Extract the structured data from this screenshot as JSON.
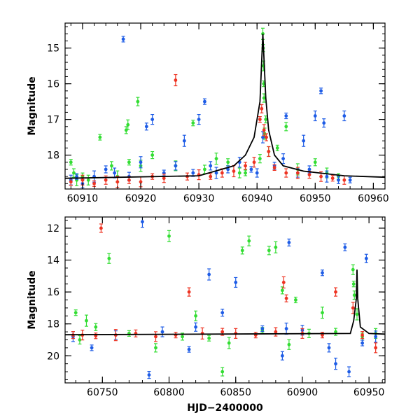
{
  "chart_data": [
    {
      "type": "scatter",
      "panel": "top",
      "title": "",
      "xlabel": "",
      "ylabel": "Magnitude",
      "xlim": [
        60907,
        60962
      ],
      "ylim": [
        18.95,
        14.3
      ],
      "y_inverted": true,
      "grid": false,
      "x_ticks": [
        60910,
        60920,
        60930,
        60940,
        60950,
        60960
      ],
      "y_ticks": [
        15,
        16,
        17,
        18
      ],
      "series": [
        {
          "name": "green",
          "color": "#33dd33",
          "points": [
            [
              60908,
              18.2
            ],
            [
              60908.5,
              18.5
            ],
            [
              60909,
              18.7
            ],
            [
              60910,
              18.6
            ],
            [
              60911,
              18.7
            ],
            [
              60913,
              17.5
            ],
            [
              60915,
              18.3
            ],
            [
              60916,
              18.6
            ],
            [
              60917.5,
              17.3
            ],
            [
              60917.8,
              17.15
            ],
            [
              60918,
              18.2
            ],
            [
              60919.5,
              16.5
            ],
            [
              60920,
              18.3
            ],
            [
              60922,
              18.0
            ],
            [
              60926,
              18.3
            ],
            [
              60929,
              17.1
            ],
            [
              60931,
              18.4
            ],
            [
              60933,
              18.1
            ],
            [
              60935,
              18.2
            ],
            [
              60937,
              18.5
            ],
            [
              60938,
              18.5
            ],
            [
              60940.5,
              18.1
            ],
            [
              60941,
              14.6
            ],
            [
              60941.05,
              15.0
            ],
            [
              60941.1,
              15.5
            ],
            [
              60941.15,
              16.0
            ],
            [
              60941.2,
              16.4
            ],
            [
              60941.3,
              17.4
            ],
            [
              60941.5,
              17.0
            ],
            [
              60942,
              17.9
            ],
            [
              60943.5,
              17.8
            ],
            [
              60945,
              17.2
            ],
            [
              60947,
              18.4
            ],
            [
              60950,
              18.2
            ],
            [
              60952,
              18.5
            ],
            [
              60954,
              18.6
            ]
          ]
        },
        {
          "name": "blue",
          "color": "#1e5ce6",
          "points": [
            [
              60908,
              18.7
            ],
            [
              60909,
              18.6
            ],
            [
              60910,
              18.8
            ],
            [
              60912,
              18.6
            ],
            [
              60914,
              18.4
            ],
            [
              60915.5,
              18.5
            ],
            [
              60917,
              14.75
            ],
            [
              60918,
              18.6
            ],
            [
              60920,
              18.2
            ],
            [
              60921,
              17.2
            ],
            [
              60922,
              17.0
            ],
            [
              60924,
              18.5
            ],
            [
              60926,
              18.3
            ],
            [
              60927.5,
              17.6
            ],
            [
              60929,
              18.5
            ],
            [
              60930,
              17.0
            ],
            [
              60931,
              16.5
            ],
            [
              60932,
              18.3
            ],
            [
              60933,
              18.5
            ],
            [
              60935,
              18.4
            ],
            [
              60937,
              18.2
            ],
            [
              60939,
              18.4
            ],
            [
              60940,
              18.5
            ],
            [
              60941,
              17.5
            ],
            [
              60943,
              18.3
            ],
            [
              60944.5,
              18.1
            ],
            [
              60945,
              16.9
            ],
            [
              60947,
              18.5
            ],
            [
              60948,
              17.6
            ],
            [
              60949,
              18.4
            ],
            [
              60950,
              16.9
            ],
            [
              60951,
              16.2
            ],
            [
              60951.5,
              17.1
            ],
            [
              60952,
              18.6
            ],
            [
              60954,
              18.7
            ],
            [
              60955,
              16.9
            ],
            [
              60956,
              18.7
            ]
          ]
        },
        {
          "name": "red",
          "color": "#ee3322",
          "points": [
            [
              60908,
              18.75
            ],
            [
              60910,
              18.7
            ],
            [
              60912,
              18.8
            ],
            [
              60914,
              18.7
            ],
            [
              60916,
              18.75
            ],
            [
              60918,
              18.7
            ],
            [
              60920,
              18.75
            ],
            [
              60922,
              18.6
            ],
            [
              60924,
              18.65
            ],
            [
              60926,
              15.9
            ],
            [
              60928,
              18.6
            ],
            [
              60930,
              18.55
            ],
            [
              60932,
              18.6
            ],
            [
              60934,
              18.5
            ],
            [
              60936,
              18.45
            ],
            [
              60938,
              18.3
            ],
            [
              60939.5,
              18.2
            ],
            [
              60940.5,
              17.0
            ],
            [
              60940.8,
              16.7
            ],
            [
              60941.2,
              17.3
            ],
            [
              60941.6,
              17.5
            ],
            [
              60942,
              17.9
            ],
            [
              60943,
              18.35
            ],
            [
              60945,
              18.5
            ],
            [
              60947,
              18.5
            ],
            [
              60949,
              18.55
            ],
            [
              60951,
              18.6
            ],
            [
              60953,
              18.65
            ],
            [
              60955,
              18.7
            ]
          ]
        }
      ],
      "model_curve": [
        [
          60907,
          18.65
        ],
        [
          60930,
          18.58
        ],
        [
          60936,
          18.3
        ],
        [
          60938,
          18.0
        ],
        [
          60939.5,
          17.5
        ],
        [
          60940.5,
          16.5
        ],
        [
          60941,
          14.6
        ],
        [
          60941.5,
          16.4
        ],
        [
          60942,
          17.3
        ],
        [
          60943,
          18.0
        ],
        [
          60944.5,
          18.3
        ],
        [
          60948,
          18.45
        ],
        [
          60955,
          18.58
        ],
        [
          60962,
          18.62
        ]
      ]
    },
    {
      "type": "scatter",
      "panel": "bottom",
      "title": "",
      "xlabel": "HJD−2400000",
      "ylabel": "Magnitude",
      "xlim": [
        60722,
        60962
      ],
      "ylim": [
        21.7,
        11.3
      ],
      "y_inverted": true,
      "grid": false,
      "x_ticks": [
        60750,
        60800,
        60850,
        60900,
        60950
      ],
      "y_ticks": [
        12,
        14,
        16,
        18,
        20
      ],
      "series": [
        {
          "name": "green",
          "color": "#33dd33",
          "points": [
            [
              60730,
              17.3
            ],
            [
              60733,
              19.0
            ],
            [
              60738,
              17.8
            ],
            [
              60745,
              18.2
            ],
            [
              60755,
              13.9
            ],
            [
              60770,
              18.6
            ],
            [
              60790,
              19.5
            ],
            [
              60800,
              12.5
            ],
            [
              60810,
              18.8
            ],
            [
              60820,
              17.5
            ],
            [
              60830,
              18.9
            ],
            [
              60840,
              21.0
            ],
            [
              60845,
              19.2
            ],
            [
              60855,
              13.4
            ],
            [
              60860,
              12.8
            ],
            [
              60870,
              18.4
            ],
            [
              60875,
              13.4
            ],
            [
              60880,
              13.2
            ],
            [
              60885,
              15.9
            ],
            [
              60890,
              19.3
            ],
            [
              60895,
              16.5
            ],
            [
              60905,
              18.6
            ],
            [
              60915,
              17.3
            ],
            [
              60925,
              18.5
            ],
            [
              60938,
              14.6
            ],
            [
              60938.5,
              15.5
            ],
            [
              60939,
              16.2
            ],
            [
              60941,
              17.4
            ],
            [
              60945,
              18.8
            ],
            [
              60955,
              18.6
            ]
          ]
        },
        {
          "name": "blue",
          "color": "#1e5ce6",
          "points": [
            [
              60728,
              18.8
            ],
            [
              60742,
              19.5
            ],
            [
              60760,
              18.7
            ],
            [
              60780,
              11.6
            ],
            [
              60785,
              21.2
            ],
            [
              60795,
              18.5
            ],
            [
              60815,
              19.6
            ],
            [
              60820,
              18.2
            ],
            [
              60830,
              14.9
            ],
            [
              60840,
              17.3
            ],
            [
              60850,
              15.4
            ],
            [
              60870,
              18.3
            ],
            [
              60885,
              20.0
            ],
            [
              60888,
              18.3
            ],
            [
              60890,
              12.9
            ],
            [
              60900,
              18.4
            ],
            [
              60915,
              14.8
            ],
            [
              60920,
              19.5
            ],
            [
              60925,
              20.5
            ],
            [
              60932,
              13.2
            ],
            [
              60935,
              21.0
            ],
            [
              60945,
              19.2
            ],
            [
              60948,
              13.9
            ],
            [
              60955,
              18.8
            ]
          ]
        },
        {
          "name": "red",
          "color": "#ee3322",
          "points": [
            [
              60728,
              18.7
            ],
            [
              60735,
              18.7
            ],
            [
              60745,
              18.75
            ],
            [
              60749,
              12.0
            ],
            [
              60760,
              18.7
            ],
            [
              60775,
              18.6
            ],
            [
              60790,
              18.8
            ],
            [
              60805,
              18.7
            ],
            [
              60815,
              16.0
            ],
            [
              60825,
              18.6
            ],
            [
              60840,
              18.5
            ],
            [
              60850,
              18.6
            ],
            [
              60865,
              18.7
            ],
            [
              60880,
              18.5
            ],
            [
              60886,
              15.4
            ],
            [
              60888,
              16.4
            ],
            [
              60900,
              18.6
            ],
            [
              60915,
              18.7
            ],
            [
              60925,
              16.0
            ],
            [
              60938,
              17.0
            ],
            [
              60945,
              18.7
            ],
            [
              60955,
              19.5
            ]
          ]
        }
      ],
      "model_curve": [
        [
          60722,
          18.68
        ],
        [
          60936,
          18.6
        ],
        [
          60938.5,
          17.8
        ],
        [
          60940.5,
          16.4
        ],
        [
          60941,
          14.6
        ],
        [
          60941.5,
          16.4
        ],
        [
          60943.5,
          18.2
        ],
        [
          60950,
          18.6
        ],
        [
          60962,
          18.64
        ]
      ]
    }
  ]
}
